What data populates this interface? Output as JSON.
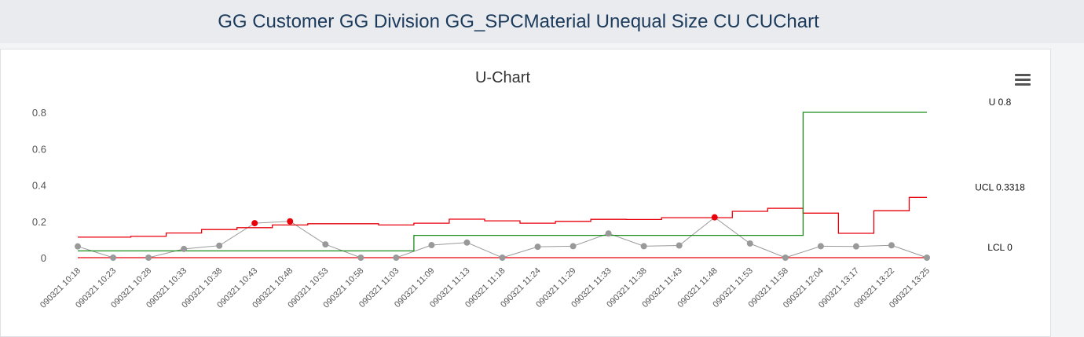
{
  "header": {
    "title": "GG Customer GG Division GG_SPCMaterial Unequal Size CU CUChart"
  },
  "chart_data": {
    "type": "line",
    "title": "U-Chart",
    "ylim": [
      0,
      0.8
    ],
    "yticks": [
      "0",
      "0.2",
      "0.4",
      "0.6",
      "0.8"
    ],
    "ytick_values": [
      0,
      0.2,
      0.4,
      0.6,
      0.8
    ],
    "categories": [
      "090321 10:18",
      "090321 10:23",
      "090321 10:28",
      "090321 10:33",
      "090321 10:38",
      "090321 10:43",
      "090321 10:48",
      "090321 10:53",
      "090321 10:58",
      "090321 11:03",
      "090321 11:09",
      "090321 11:13",
      "090321 11:18",
      "090321 11:24",
      "090321 11:29",
      "090321 11:33",
      "090321 11:38",
      "090321 11:43",
      "090321 11:48",
      "090321 11:53",
      "090321 11:58",
      "090321 12:04",
      "090321 13:17",
      "090321 13:22",
      "090321 13:25"
    ],
    "series": [
      {
        "role": "measure",
        "color": "#999999",
        "values": [
          0.062,
          0,
          0,
          0.048,
          0.066,
          0.19,
          0.2,
          0.073,
          0,
          0,
          0.069,
          0.083,
          0,
          0.06,
          0.063,
          0.133,
          0.063,
          0.067,
          0.222,
          0.078,
          0,
          0.063,
          0.062,
          0.068,
          0
        ],
        "out_of_control": [
          5,
          6,
          18
        ],
        "ooc_color": "#e8000b"
      },
      {
        "role": "ucl",
        "color": "#e8000b",
        "values": [
          0.113,
          0.113,
          0.117,
          0.136,
          0.155,
          0.165,
          0.18,
          0.187,
          0.187,
          0.18,
          0.19,
          0.212,
          0.203,
          0.19,
          0.2,
          0.211,
          0.21,
          0.22,
          0.22,
          0.255,
          0.272,
          0.245,
          0.134,
          0.258,
          0.3318
        ]
      },
      {
        "role": "center",
        "color": "#1a8c1a",
        "values": [
          0.037,
          0.037,
          0.037,
          0.037,
          0.037,
          0.037,
          0.037,
          0.037,
          0.037,
          0.037,
          0.123,
          0.123,
          0.123,
          0.123,
          0.123,
          0.123,
          0.123,
          0.123,
          0.123,
          0.123,
          0.123,
          0.8,
          0.8,
          0.8,
          0.8
        ]
      },
      {
        "role": "lcl",
        "color": "#e8000b",
        "values": [
          0,
          0,
          0,
          0,
          0,
          0,
          0,
          0,
          0,
          0,
          0,
          0,
          0,
          0,
          0,
          0,
          0,
          0,
          0,
          0,
          0,
          0,
          0,
          0,
          0
        ]
      }
    ],
    "limit_labels": [
      {
        "text": "U 0.8",
        "value": 0.8
      },
      {
        "text": "UCL 0.3318",
        "value": 0.3318
      },
      {
        "text": "LCL 0",
        "value": 0
      }
    ],
    "grid": false,
    "legend": "none"
  },
  "colors": {
    "header_text": "#1b3a5c",
    "header_bg": "#e9ebee"
  },
  "icons": {
    "menu": "hamburger-menu-icon"
  }
}
